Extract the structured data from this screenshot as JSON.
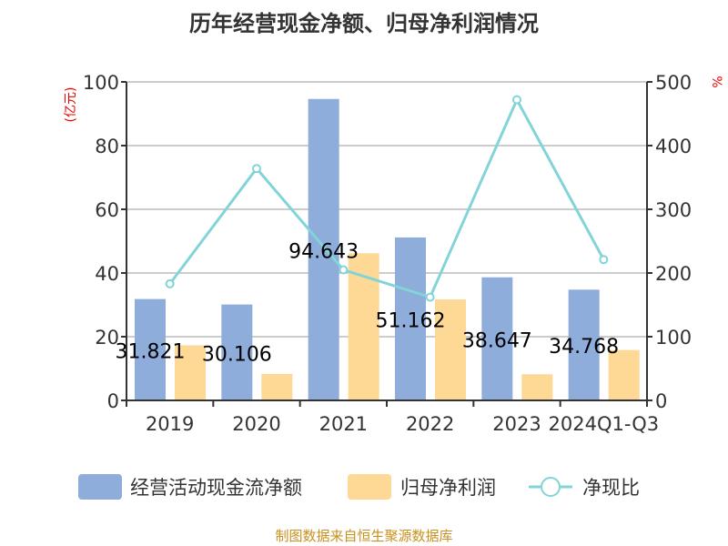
{
  "chart_data": {
    "type": "bar",
    "title": "历年经营现金净额、归母净利润情况",
    "categories": [
      "2019",
      "2020",
      "2021",
      "2022",
      "2023",
      "2024Q1-Q3"
    ],
    "y_left": {
      "label": "(亿元)",
      "range": [
        0,
        100
      ],
      "ticks": [
        0,
        20,
        40,
        60,
        80,
        100
      ]
    },
    "y_right": {
      "label": "%",
      "range": [
        0,
        500
      ],
      "ticks": [
        0,
        100,
        200,
        300,
        400,
        500
      ]
    },
    "series": [
      {
        "name": "经营活动现金流净额",
        "type": "bar",
        "axis": "left",
        "color": "#8eadda",
        "values": [
          31.821,
          30.106,
          94.643,
          51.162,
          38.647,
          34.768
        ],
        "labels": [
          "31.821",
          "30.106",
          "94.643",
          "51.162",
          "38.647",
          "34.768"
        ]
      },
      {
        "name": "归母净利润",
        "type": "bar",
        "axis": "left",
        "color": "#fed895",
        "values": [
          17.3,
          8.3,
          46.2,
          31.7,
          8.2,
          15.8
        ]
      },
      {
        "name": "净现比",
        "type": "line",
        "axis": "right",
        "color": "#82d4d8",
        "values": [
          183,
          364,
          205,
          162,
          472,
          221
        ]
      }
    ],
    "grid": true,
    "legend_position": "bottom",
    "source": "制图数据来自恒生聚源数据库"
  }
}
